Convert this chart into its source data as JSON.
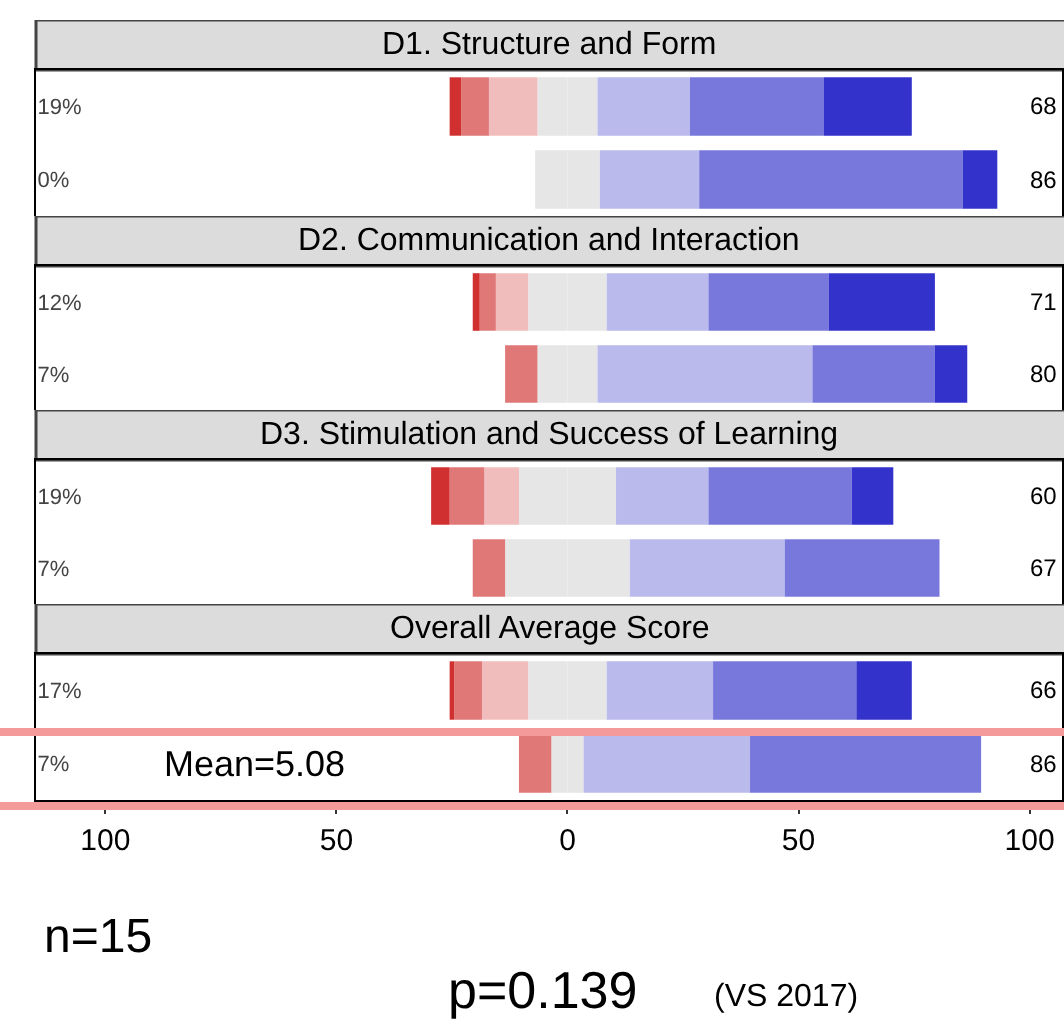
{
  "chart_data": [
    {
      "type": "bar",
      "title": "D1. Structure and Form",
      "orientation": "horizontal",
      "stacked": true,
      "categories": [
        "19%",
        "0%"
      ],
      "annotations": [
        "68",
        "86"
      ],
      "xlim": [
        -115,
        107
      ],
      "tick_labels": "y",
      "series": [
        {
          "color": "#e6e6e6",
          "values": [
            -6.5,
            -7
          ]
        },
        {
          "color": "#f0bcbc",
          "values": [
            -10.5,
            0
          ]
        },
        {
          "color": "#e07878",
          "values": [
            -6,
            0
          ]
        },
        {
          "color": "#d03030",
          "values": [
            -2.5,
            0
          ]
        },
        {
          "color": "#e6e6e6",
          "values": [
            6.5,
            7
          ]
        },
        {
          "color": "#babaec",
          "values": [
            20,
            21.5
          ]
        },
        {
          "color": "#7878dc",
          "values": [
            29,
            57
          ]
        },
        {
          "color": "#3333cc",
          "values": [
            19,
            7.5
          ]
        }
      ]
    },
    {
      "type": "bar",
      "title": "D2. Communication and Interaction",
      "orientation": "horizontal",
      "stacked": true,
      "categories": [
        "12%",
        "7%"
      ],
      "annotations": [
        "71",
        "80"
      ],
      "xlim": [
        -115,
        107
      ],
      "tick_labels": "y",
      "series": [
        {
          "color": "#e6e6e6",
          "values": [
            -8.5,
            -6.5
          ]
        },
        {
          "color": "#f0bcbc",
          "values": [
            -7,
            0
          ]
        },
        {
          "color": "#e07878",
          "values": [
            -3.5,
            -7
          ]
        },
        {
          "color": "#d03030",
          "values": [
            -1.5,
            0
          ]
        },
        {
          "color": "#e6e6e6",
          "values": [
            8.5,
            6.5
          ]
        },
        {
          "color": "#babaec",
          "values": [
            22,
            46.5
          ]
        },
        {
          "color": "#7878dc",
          "values": [
            26,
            26.5
          ]
        },
        {
          "color": "#3333cc",
          "values": [
            23,
            7
          ]
        }
      ]
    },
    {
      "type": "bar",
      "title": "D3. Stimulation and Success of Learning",
      "orientation": "horizontal",
      "stacked": true,
      "categories": [
        "19%",
        "7%"
      ],
      "annotations": [
        "60",
        "67"
      ],
      "xlim": [
        -115,
        107
      ],
      "tick_labels": "y",
      "series": [
        {
          "color": "#e6e6e6",
          "values": [
            -10.5,
            -13.5
          ]
        },
        {
          "color": "#f0bcbc",
          "values": [
            -7.5,
            0
          ]
        },
        {
          "color": "#e07878",
          "values": [
            -7.5,
            -7
          ]
        },
        {
          "color": "#d03030",
          "values": [
            -4,
            0
          ]
        },
        {
          "color": "#e6e6e6",
          "values": [
            10.5,
            13.5
          ]
        },
        {
          "color": "#babaec",
          "values": [
            20,
            33.5
          ]
        },
        {
          "color": "#7878dc",
          "values": [
            31,
            33.5
          ]
        },
        {
          "color": "#3333cc",
          "values": [
            9,
            0
          ]
        }
      ]
    },
    {
      "type": "bar",
      "title": "Overall Average Score",
      "orientation": "horizontal",
      "stacked": true,
      "categories": [
        "17%",
        "7%"
      ],
      "xlim": [
        -115,
        107
      ],
      "xticks": [
        {
          "value": -100,
          "label": "100"
        },
        {
          "value": -50,
          "label": "50"
        },
        0,
        50,
        100
      ],
      "annotations": [
        "66",
        "86",
        "Mean=5.08",
        "n=15",
        "p=0.139",
        "(VS 2017)"
      ],
      "series": [
        {
          "color": "#e6e6e6",
          "values": [
            -8.5,
            -3.5
          ]
        },
        {
          "color": "#f0bcbc",
          "values": [
            -10,
            0
          ]
        },
        {
          "color": "#e07878",
          "values": [
            -6,
            -7
          ]
        },
        {
          "color": "#d03030",
          "values": [
            -1,
            0
          ]
        },
        {
          "color": "#e6e6e6",
          "values": [
            8.5,
            3.5
          ]
        },
        {
          "color": "#babaec",
          "values": [
            23,
            36
          ]
        },
        {
          "color": "#7878dc",
          "values": [
            31,
            50
          ]
        },
        {
          "color": "#3333cc",
          "values": [
            12,
            0
          ]
        }
      ]
    }
  ]
}
